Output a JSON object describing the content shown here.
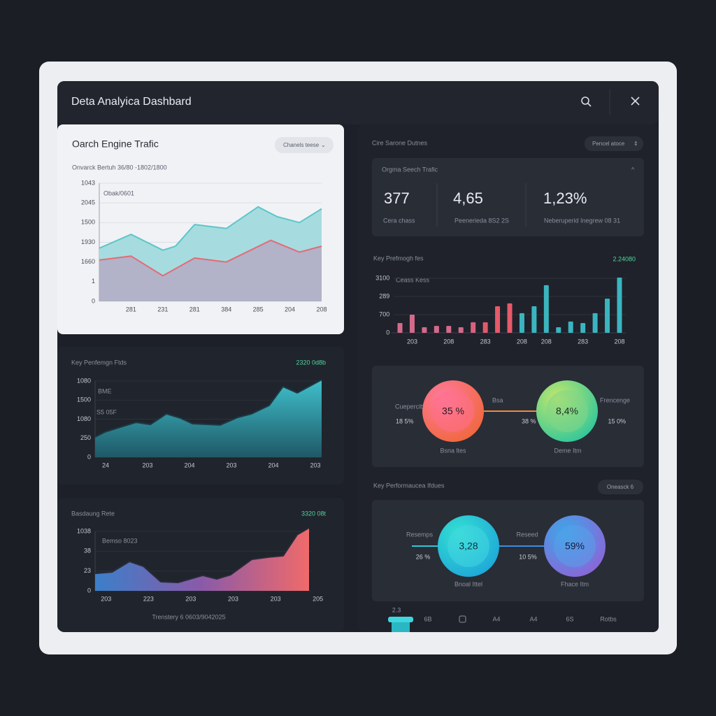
{
  "header": {
    "title": "Deta Analyica Dashbard"
  },
  "traffic": {
    "title": "Oarch Engine Trafic",
    "button": "Chanels teese",
    "subtitle": "Onvarck Bertuh  36/80 -1802/1800",
    "chart": {
      "type": "area",
      "annotation": "Obak/0601",
      "grid": true,
      "xlim": [
        0,
        7
      ],
      "xticks": [
        {
          "value": 1,
          "label": "281"
        },
        {
          "value": 2,
          "label": "231"
        },
        {
          "value": 3,
          "label": "281"
        },
        {
          "value": 4,
          "label": "384"
        },
        {
          "value": 5,
          "label": "285"
        },
        {
          "value": 6,
          "label": "204"
        },
        {
          "value": 7,
          "label": "208"
        }
      ],
      "ylim": [
        0,
        6
      ],
      "yticks": [
        0,
        1,
        {
          "value": 2,
          "label": "1660"
        },
        {
          "value": 3,
          "label": "1930"
        },
        {
          "value": 4,
          "label": "1500"
        },
        {
          "value": 5,
          "label": "2045"
        },
        {
          "value": 6,
          "label": "1043"
        }
      ],
      "series": [
        {
          "color": "#5cc6cc",
          "fill": "#a6dcdf",
          "x": [
            0,
            1,
            2,
            2.4,
            3,
            4,
            5,
            5.6,
            6.3,
            7
          ],
          "values": [
            2.7,
            3.4,
            2.6,
            2.8,
            3.9,
            3.7,
            4.8,
            4.3,
            4.0,
            4.7
          ]
        },
        {
          "color": "#e36b77",
          "fill": "#b2b2c8",
          "x": [
            0,
            1,
            2,
            3,
            4,
            5.4,
            6.3,
            7
          ],
          "values": [
            2.1,
            2.3,
            1.3,
            2.2,
            2.0,
            3.1,
            2.5,
            2.8
          ]
        }
      ]
    }
  },
  "performance": {
    "title": "Key Penfemgn Ftds",
    "badge": "2320 0d8b",
    "chart": {
      "type": "area",
      "annotations": [
        "BME",
        "S5 05F"
      ],
      "grid": true,
      "xlim": [
        0,
        5.4
      ],
      "xticks": [
        {
          "value": 0.25,
          "label": "24"
        },
        {
          "value": 1.25,
          "label": "203"
        },
        {
          "value": 2.25,
          "label": "204"
        },
        {
          "value": 3.25,
          "label": "203"
        },
        {
          "value": 4.25,
          "label": "204"
        },
        {
          "value": 5.25,
          "label": "203"
        }
      ],
      "ylim": [
        0,
        4
      ],
      "yticks": [
        0,
        {
          "value": 1,
          "label": "250"
        },
        {
          "value": 2,
          "label": "1080"
        },
        {
          "value": 3,
          "label": "1500"
        },
        {
          "value": 4,
          "label": "1080"
        }
      ],
      "series": [
        {
          "color": "#1d3a46",
          "gradient": [
            "#3fc0cc",
            "#1f5866"
          ],
          "gradient_direction": "vertical",
          "x": [
            0,
            0.23,
            0.65,
            0.98,
            1.32,
            1.7,
            2.03,
            2.32,
            2.98,
            3.4,
            3.73,
            4.15,
            4.48,
            4.82,
            5.4
          ],
          "values": [
            1.06,
            1.32,
            1.61,
            1.83,
            1.72,
            2.28,
            2.06,
            1.76,
            1.69,
            2.09,
            2.28,
            2.72,
            3.71,
            3.38,
            4.07
          ]
        }
      ]
    }
  },
  "bounce": {
    "title": "Basdaung Rete",
    "badge": "3320 08t",
    "footer": "Trenstery 6 0603/9042025",
    "chart": {
      "type": "area",
      "annotation": "Bemso 8023",
      "grid": true,
      "xlim": [
        0,
        5.1
      ],
      "xticks": [
        {
          "value": 0.26,
          "label": "203"
        },
        {
          "value": 1.26,
          "label": "223"
        },
        {
          "value": 2.26,
          "label": "203"
        },
        {
          "value": 3.26,
          "label": "203"
        },
        {
          "value": 4.26,
          "label": "203"
        },
        {
          "value": 5.26,
          "label": "205"
        }
      ],
      "ylim": [
        0,
        3
      ],
      "yticks": [
        0,
        {
          "value": 1,
          "label": "23"
        },
        {
          "value": 2,
          "label": "38"
        },
        {
          "value": 3,
          "label": "1038"
        }
      ],
      "series": [
        {
          "color": "#2b2c3a",
          "gradient": [
            "#3b7fc9",
            "#8a5aa8",
            "#f06a6a"
          ],
          "gradient_direction": "horizontal",
          "x": [
            0,
            0.4,
            0.81,
            1.14,
            1.55,
            1.96,
            2.54,
            2.87,
            3.2,
            3.7,
            4.1,
            4.44,
            4.77,
            5.05
          ],
          "values": [
            0.88,
            0.95,
            1.48,
            1.24,
            0.46,
            0.42,
            0.78,
            0.6,
            0.81,
            1.59,
            1.7,
            1.77,
            2.83,
            3.18
          ]
        }
      ]
    }
  },
  "overview": {
    "title": "Cire Sarone Dutnes",
    "button": "Pencel atoce",
    "card": {
      "title": "Orgma Seech Trafic",
      "metrics": [
        {
          "value": "377",
          "label": "Cera chass"
        },
        {
          "value": "4,65",
          "label": "Peenerieda 8S2 2S"
        },
        {
          "value": "1,23%",
          "label": "Neberuperid Inegrew 08 31"
        }
      ]
    }
  },
  "kpi_bars": {
    "title": "Key Prefmogh fes",
    "badge": "2.24080",
    "chart": {
      "type": "bar",
      "annotation": "Ceass Kess",
      "grid": true,
      "categories": [
        null,
        "203",
        null,
        null,
        "208",
        null,
        null,
        "283",
        null,
        null,
        "208",
        null,
        "208",
        null,
        null,
        "283",
        null,
        null,
        "208"
      ],
      "values": [
        0.54,
        1.0,
        0.31,
        0.38,
        0.38,
        0.31,
        0.58,
        0.58,
        1.46,
        1.62,
        1.08,
        1.46,
        2.62,
        0.31,
        0.62,
        0.54,
        1.08,
        1.88,
        3.04
      ],
      "colors": [
        "#d46a8a",
        "#d46a8a",
        "#d46a8a",
        "#d46a8a",
        "#d46a8a",
        "#d46a8a",
        "#d9627e",
        "#e05a6e",
        "#e65a6a",
        "#e65a6a",
        "#3ab5c0",
        "#3ab5c0",
        "#3ab5c0",
        "#3ab5c0",
        "#3ab5c0",
        "#3ab5c0",
        "#3ab5c0",
        "#3ab5c0",
        "#3ab5c0"
      ],
      "ylim": [
        0,
        3.1
      ],
      "yticks": [
        0,
        {
          "value": 1,
          "label": "700"
        },
        {
          "value": 2,
          "label": "289"
        },
        {
          "value": 3,
          "label": "3100"
        }
      ]
    }
  },
  "rings_top": {
    "left": {
      "value": "35 %",
      "caption": "Bsna ltes",
      "side_label": "Cuepercib",
      "side_value": "18 5%"
    },
    "middle": {
      "label": "Bsa",
      "value": "38 %"
    },
    "right": {
      "value": "8,4%",
      "caption": "Deme Itm",
      "side_label": "Frencenge",
      "side_value": "15 0%"
    }
  },
  "rings_section": {
    "title": "Key Performaucea Ifdues",
    "button": "Oneasck 6",
    "left": {
      "value": "3,28",
      "caption": "Bnoal Ittel",
      "side_label": "Resemps",
      "side_value": "26 %"
    },
    "right": {
      "value": "59%",
      "caption": "Fhace Itm",
      "side_label": "Reseed",
      "side_value": "10 5%"
    }
  },
  "tabs": {
    "active_caption": "2.3",
    "items": [
      "6B",
      "A4",
      "A4",
      "6S",
      "Rotbs"
    ]
  }
}
